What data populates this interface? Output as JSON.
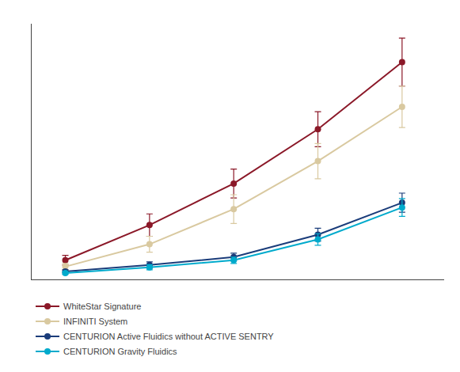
{
  "chart_data": {
    "type": "line",
    "x": [
      1,
      2,
      3,
      4,
      5
    ],
    "series": [
      {
        "name": "WhiteStar Signature",
        "color": "#8B1828",
        "values": [
          6,
          17,
          30,
          47,
          68
        ],
        "yerr": [
          1.5,
          3.5,
          4.5,
          5.5,
          7.5
        ]
      },
      {
        "name": "INFINITI System",
        "color": "#D9C9A0",
        "values": [
          4,
          11,
          22,
          37,
          54
        ],
        "yerr": [
          1.0,
          2.5,
          4.5,
          5.5,
          6.5
        ]
      },
      {
        "name": "CENTURION Active Fluidics without ACTIVE SENTRY",
        "color": "#1A3C7A",
        "values": [
          2.5,
          4.5,
          7.0,
          14.0,
          24.0
        ],
        "yerr": [
          0.5,
          1.0,
          1.2,
          2.0,
          3.0
        ]
      },
      {
        "name": "CENTURION Gravity Fluidics",
        "color": "#00AACC",
        "values": [
          2.0,
          3.8,
          6.0,
          12.5,
          22.5
        ],
        "yerr": [
          0.4,
          0.8,
          1.0,
          1.8,
          2.8
        ]
      }
    ],
    "xlim": [
      0.6,
      5.5
    ],
    "ylim": [
      0,
      80
    ],
    "xticks": [],
    "yticks": [],
    "tick_labels": false,
    "grid": false,
    "legend": "bottom",
    "marker": "circle"
  }
}
